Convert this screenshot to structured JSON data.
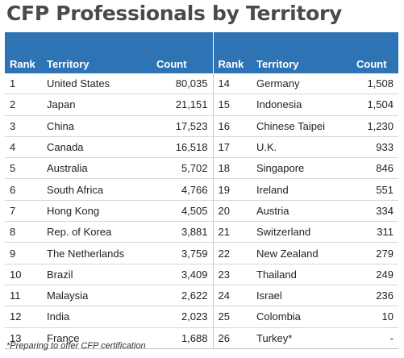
{
  "title": "CFP Professionals by Territory",
  "headers": {
    "rank": "Rank",
    "territory": "Territory",
    "count": "Count"
  },
  "rows_left": [
    {
      "rank": "1",
      "territory": "United States",
      "count": "80,035"
    },
    {
      "rank": "2",
      "territory": "Japan",
      "count": "21,151"
    },
    {
      "rank": "3",
      "territory": "China",
      "count": "17,523"
    },
    {
      "rank": "4",
      "territory": "Canada",
      "count": "16,518"
    },
    {
      "rank": "5",
      "territory": "Australia",
      "count": "5,702"
    },
    {
      "rank": "6",
      "territory": "South Africa",
      "count": "4,766"
    },
    {
      "rank": "7",
      "territory": "Hong Kong",
      "count": "4,505"
    },
    {
      "rank": "8",
      "territory": "Rep. of Korea",
      "count": "3,881"
    },
    {
      "rank": "9",
      "territory": "The Netherlands",
      "count": "3,759"
    },
    {
      "rank": "10",
      "territory": "Brazil",
      "count": "3,409"
    },
    {
      "rank": "11",
      "territory": "Malaysia",
      "count": "2,622"
    },
    {
      "rank": "12",
      "territory": "India",
      "count": "2,023"
    },
    {
      "rank": "13",
      "territory": "France",
      "count": "1,688"
    }
  ],
  "rows_right": [
    {
      "rank": "14",
      "territory": "Germany",
      "count": "1,508"
    },
    {
      "rank": "15",
      "territory": "Indonesia",
      "count": "1,504"
    },
    {
      "rank": "16",
      "territory": "Chinese Taipei",
      "count": "1,230"
    },
    {
      "rank": "17",
      "territory": "U.K.",
      "count": "933"
    },
    {
      "rank": "18",
      "territory": "Singapore",
      "count": "846"
    },
    {
      "rank": "19",
      "territory": "Ireland",
      "count": "551"
    },
    {
      "rank": "20",
      "territory": "Austria",
      "count": "334"
    },
    {
      "rank": "21",
      "territory": "Switzerland",
      "count": "311"
    },
    {
      "rank": "22",
      "territory": "New Zealand",
      "count": "279"
    },
    {
      "rank": "23",
      "territory": "Thailand",
      "count": "249"
    },
    {
      "rank": "24",
      "territory": "Israel",
      "count": "236"
    },
    {
      "rank": "25",
      "territory": "Colombia",
      "count": "10"
    },
    {
      "rank": "26",
      "territory": "Turkey*",
      "count": "-"
    }
  ],
  "footnote": "*Preparing to offer CFP certification",
  "colors": {
    "header_bg": "#2e74b5",
    "title": "#4a4a4a"
  }
}
